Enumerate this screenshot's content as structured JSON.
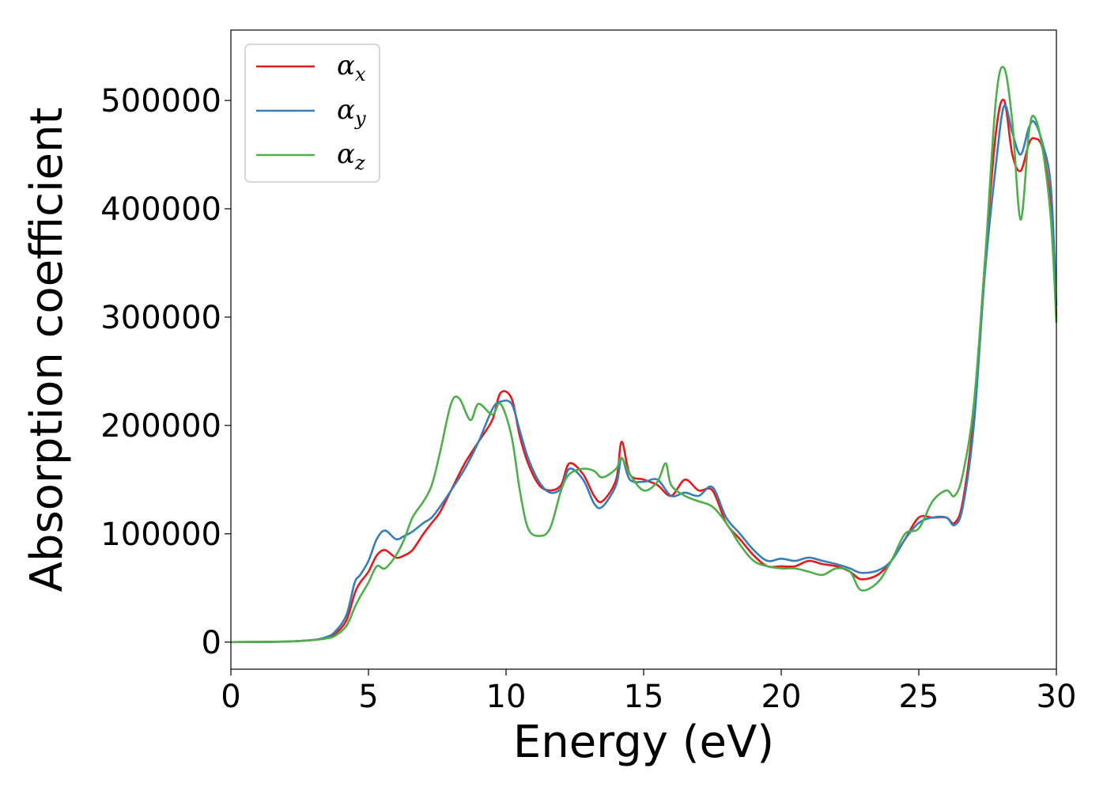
{
  "chart_data": {
    "type": "line",
    "title": "",
    "xlabel": "Energy (eV)",
    "ylabel": "Absorption coefficient",
    "xlim": [
      0,
      30
    ],
    "ylim": [
      -25000,
      565000
    ],
    "xticks": [
      0,
      5,
      10,
      15,
      20,
      25,
      30
    ],
    "xtick_labels": [
      "0",
      "5",
      "10",
      "15",
      "20",
      "25",
      "30"
    ],
    "yticks": [
      0,
      100000,
      200000,
      300000,
      400000,
      500000
    ],
    "ytick_labels": [
      "0",
      "100000",
      "200000",
      "300000",
      "400000",
      "500000"
    ],
    "grid": false,
    "legend_position": "top-left",
    "series": [
      {
        "name": "α",
        "subscript": "x",
        "color": "#e41a1c",
        "x": [
          0,
          2,
          3,
          3.5,
          3.8,
          4.2,
          4.5,
          4.7,
          5.0,
          5.3,
          5.6,
          6.0,
          6.3,
          6.6,
          7.0,
          7.3,
          7.6,
          8.0,
          8.5,
          9.0,
          9.5,
          9.8,
          10.2,
          10.5,
          10.8,
          11.2,
          11.6,
          12.0,
          12.3,
          12.8,
          13.2,
          13.5,
          14.0,
          14.2,
          14.5,
          15.0,
          15.5,
          16.0,
          16.5,
          17.0,
          17.5,
          18.0,
          18.5,
          19.0,
          19.5,
          20.0,
          20.5,
          21.0,
          21.5,
          22.0,
          22.5,
          22.9,
          23.5,
          24.0,
          24.5,
          25.0,
          25.5,
          26.0,
          26.3,
          26.6,
          27.0,
          27.4,
          27.8,
          28.1,
          28.4,
          28.7,
          29.0,
          29.2,
          29.5,
          29.8,
          30.0
        ],
        "y": [
          0,
          500,
          2000,
          4000,
          8000,
          20000,
          45000,
          55000,
          65000,
          80000,
          85000,
          78000,
          80000,
          85000,
          100000,
          110000,
          120000,
          140000,
          165000,
          185000,
          205000,
          230000,
          225000,
          190000,
          165000,
          145000,
          140000,
          145000,
          165000,
          155000,
          135000,
          130000,
          150000,
          185000,
          155000,
          150000,
          145000,
          135000,
          150000,
          140000,
          140000,
          110000,
          95000,
          80000,
          70000,
          70000,
          70000,
          75000,
          72000,
          70000,
          65000,
          58000,
          62000,
          75000,
          95000,
          115000,
          115000,
          115000,
          110000,
          130000,
          210000,
          350000,
          470000,
          500000,
          450000,
          435000,
          460000,
          465000,
          455000,
          400000,
          300000
        ]
      },
      {
        "name": "α",
        "subscript": "y",
        "color": "#377eb8",
        "x": [
          0,
          2,
          3,
          3.5,
          3.8,
          4.2,
          4.5,
          4.7,
          5.0,
          5.3,
          5.6,
          6.0,
          6.3,
          6.6,
          7.0,
          7.3,
          7.6,
          8.0,
          8.5,
          9.0,
          9.5,
          9.8,
          10.2,
          10.5,
          10.8,
          11.2,
          11.6,
          12.0,
          12.3,
          12.8,
          13.2,
          13.5,
          14.0,
          14.2,
          14.5,
          15.0,
          15.5,
          16.0,
          16.5,
          17.0,
          17.5,
          18.0,
          18.5,
          19.0,
          19.5,
          20.0,
          20.5,
          21.0,
          21.5,
          22.0,
          22.5,
          22.9,
          23.5,
          24.0,
          24.5,
          25.0,
          25.5,
          26.0,
          26.3,
          26.6,
          27.0,
          27.4,
          27.8,
          28.1,
          28.4,
          28.7,
          29.0,
          29.2,
          29.5,
          29.8,
          30.0
        ],
        "y": [
          0,
          500,
          2000,
          5000,
          10000,
          25000,
          55000,
          62000,
          75000,
          95000,
          103000,
          95000,
          98000,
          102000,
          110000,
          115000,
          125000,
          140000,
          160000,
          185000,
          215000,
          222000,
          220000,
          195000,
          170000,
          148000,
          138000,
          142000,
          160000,
          150000,
          128000,
          125000,
          145000,
          170000,
          150000,
          148000,
          150000,
          135000,
          138000,
          135000,
          143000,
          115000,
          100000,
          85000,
          75000,
          77000,
          75000,
          78000,
          75000,
          72000,
          68000,
          64000,
          66000,
          75000,
          95000,
          110000,
          115000,
          115000,
          108000,
          125000,
          200000,
          340000,
          440000,
          495000,
          470000,
          450000,
          475000,
          480000,
          460000,
          420000,
          310000
        ]
      },
      {
        "name": "α",
        "subscript": "z",
        "color": "#4daf4a",
        "x": [
          0,
          2,
          3,
          3.5,
          3.8,
          4.2,
          4.5,
          4.7,
          5.0,
          5.3,
          5.6,
          6.0,
          6.3,
          6.6,
          7.0,
          7.3,
          7.6,
          8.0,
          8.3,
          8.7,
          9.0,
          9.5,
          9.8,
          10.2,
          10.5,
          10.8,
          11.2,
          11.6,
          12.0,
          12.3,
          12.8,
          13.2,
          13.5,
          14.0,
          14.2,
          14.5,
          15.0,
          15.5,
          15.8,
          16.0,
          16.5,
          17.0,
          17.5,
          18.0,
          18.5,
          19.0,
          19.5,
          20.0,
          20.5,
          21.0,
          21.5,
          22.0,
          22.5,
          22.9,
          23.5,
          24.0,
          24.5,
          25.0,
          25.5,
          26.0,
          26.3,
          26.6,
          27.0,
          27.4,
          27.8,
          28.1,
          28.4,
          28.7,
          29.0,
          29.2,
          29.5,
          29.8,
          30.0
        ],
        "y": [
          0,
          500,
          2000,
          3500,
          6000,
          15000,
          32000,
          42000,
          55000,
          70000,
          68000,
          80000,
          95000,
          115000,
          130000,
          145000,
          175000,
          220000,
          225000,
          205000,
          220000,
          210000,
          220000,
          190000,
          140000,
          105000,
          98000,
          105000,
          140000,
          155000,
          160000,
          158000,
          152000,
          160000,
          170000,
          155000,
          140000,
          148000,
          165000,
          145000,
          135000,
          130000,
          125000,
          110000,
          90000,
          75000,
          70000,
          68000,
          68000,
          65000,
          62000,
          68000,
          65000,
          48000,
          55000,
          75000,
          100000,
          105000,
          130000,
          140000,
          135000,
          155000,
          220000,
          350000,
          500000,
          530000,
          480000,
          390000,
          470000,
          485000,
          455000,
          390000,
          295000
        ]
      }
    ]
  }
}
